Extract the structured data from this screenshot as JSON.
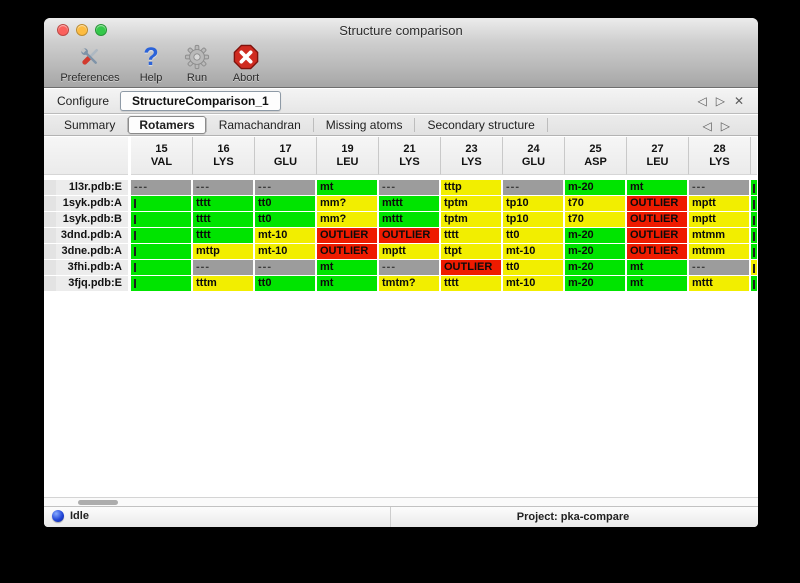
{
  "window": {
    "title": "Structure comparison"
  },
  "toolbar": {
    "items": [
      {
        "label": "Preferences",
        "icon": "tools-icon"
      },
      {
        "label": "Help",
        "icon": "question-icon"
      },
      {
        "label": "Run",
        "icon": "gear-icon"
      },
      {
        "label": "Abort",
        "icon": "abort-icon"
      }
    ]
  },
  "configure": {
    "label": "Configure",
    "tab_title": "StructureComparison_1"
  },
  "nav": {
    "prev": "◁",
    "next": "▷",
    "close": "✕"
  },
  "tabs": {
    "items": [
      "Summary",
      "Rotamers",
      "Ramachandran",
      "Missing atoms",
      "Secondary structure"
    ],
    "selected": "Rotamers"
  },
  "colors": {
    "green": "#00e400",
    "yellow": "#f2ee00",
    "red": "#ee1b00",
    "gray": "#9c9c9c"
  },
  "table": {
    "columns": [
      {
        "num": "15",
        "res": "VAL"
      },
      {
        "num": "16",
        "res": "LYS"
      },
      {
        "num": "17",
        "res": "GLU"
      },
      {
        "num": "19",
        "res": "LEU"
      },
      {
        "num": "21",
        "res": "LYS"
      },
      {
        "num": "23",
        "res": "LYS"
      },
      {
        "num": "24",
        "res": "GLU"
      },
      {
        "num": "25",
        "res": "ASP"
      },
      {
        "num": "27",
        "res": "LEU"
      },
      {
        "num": "28",
        "res": "LYS"
      }
    ],
    "rows": [
      {
        "label": "1l3r.pdb:E",
        "ov": "green",
        "cells": [
          {
            "t": "---",
            "c": "gray"
          },
          {
            "t": "---",
            "c": "gray"
          },
          {
            "t": "---",
            "c": "gray"
          },
          {
            "t": "mt",
            "c": "green"
          },
          {
            "t": "---",
            "c": "gray"
          },
          {
            "t": "tttp",
            "c": "yellow"
          },
          {
            "t": "---",
            "c": "gray"
          },
          {
            "t": "m-20",
            "c": "green"
          },
          {
            "t": "mt",
            "c": "green"
          },
          {
            "t": "---",
            "c": "gray"
          }
        ]
      },
      {
        "label": "1syk.pdb:A",
        "ov": "green",
        "cells": [
          {
            "t": "",
            "c": "green",
            "m": true
          },
          {
            "t": "tttt",
            "c": "green"
          },
          {
            "t": "tt0",
            "c": "green"
          },
          {
            "t": "mm?",
            "c": "yellow"
          },
          {
            "t": "mttt",
            "c": "green"
          },
          {
            "t": "tptm",
            "c": "yellow"
          },
          {
            "t": "tp10",
            "c": "yellow"
          },
          {
            "t": "t70",
            "c": "yellow"
          },
          {
            "t": "OUTLIER",
            "c": "red"
          },
          {
            "t": "mptt",
            "c": "yellow"
          }
        ]
      },
      {
        "label": "1syk.pdb:B",
        "ov": "green",
        "cells": [
          {
            "t": "",
            "c": "green",
            "m": true
          },
          {
            "t": "tttt",
            "c": "green"
          },
          {
            "t": "tt0",
            "c": "green"
          },
          {
            "t": "mm?",
            "c": "yellow"
          },
          {
            "t": "mttt",
            "c": "green"
          },
          {
            "t": "tptm",
            "c": "yellow"
          },
          {
            "t": "tp10",
            "c": "yellow"
          },
          {
            "t": "t70",
            "c": "yellow"
          },
          {
            "t": "OUTLIER",
            "c": "red"
          },
          {
            "t": "mptt",
            "c": "yellow"
          }
        ]
      },
      {
        "label": "3dnd.pdb:A",
        "ov": "green",
        "cells": [
          {
            "t": "",
            "c": "green",
            "m": true
          },
          {
            "t": "tttt",
            "c": "green"
          },
          {
            "t": "mt-10",
            "c": "yellow"
          },
          {
            "t": "OUTLIER",
            "c": "red"
          },
          {
            "t": "OUTLIER",
            "c": "red"
          },
          {
            "t": "tttt",
            "c": "yellow"
          },
          {
            "t": "tt0",
            "c": "yellow"
          },
          {
            "t": "m-20",
            "c": "green"
          },
          {
            "t": "OUTLIER",
            "c": "red"
          },
          {
            "t": "mtmm",
            "c": "yellow"
          }
        ]
      },
      {
        "label": "3dne.pdb:A",
        "ov": "green",
        "cells": [
          {
            "t": "",
            "c": "green",
            "m": true
          },
          {
            "t": "mttp",
            "c": "yellow"
          },
          {
            "t": "mt-10",
            "c": "yellow"
          },
          {
            "t": "OUTLIER",
            "c": "red"
          },
          {
            "t": "mptt",
            "c": "yellow"
          },
          {
            "t": "ttpt",
            "c": "yellow"
          },
          {
            "t": "mt-10",
            "c": "yellow"
          },
          {
            "t": "m-20",
            "c": "green"
          },
          {
            "t": "OUTLIER",
            "c": "red"
          },
          {
            "t": "mtmm",
            "c": "yellow"
          }
        ]
      },
      {
        "label": "3fhi.pdb:A",
        "ov": "yellow",
        "cells": [
          {
            "t": "",
            "c": "green",
            "m": true
          },
          {
            "t": "---",
            "c": "gray"
          },
          {
            "t": "---",
            "c": "gray"
          },
          {
            "t": "mt",
            "c": "green"
          },
          {
            "t": "---",
            "c": "gray"
          },
          {
            "t": "OUTLIER",
            "c": "red"
          },
          {
            "t": "tt0",
            "c": "yellow"
          },
          {
            "t": "m-20",
            "c": "green"
          },
          {
            "t": "mt",
            "c": "green"
          },
          {
            "t": "---",
            "c": "gray"
          }
        ]
      },
      {
        "label": "3fjq.pdb:E",
        "ov": "green",
        "cells": [
          {
            "t": "",
            "c": "green",
            "m": true
          },
          {
            "t": "tttm",
            "c": "yellow"
          },
          {
            "t": "tt0",
            "c": "green"
          },
          {
            "t": "mt",
            "c": "green"
          },
          {
            "t": "tmtm?",
            "c": "yellow"
          },
          {
            "t": "tttt",
            "c": "yellow"
          },
          {
            "t": "mt-10",
            "c": "yellow"
          },
          {
            "t": "m-20",
            "c": "green"
          },
          {
            "t": "mt",
            "c": "green"
          },
          {
            "t": "mttt",
            "c": "yellow"
          }
        ]
      }
    ]
  },
  "statusbar": {
    "status": "Idle",
    "project": "Project: pka-compare"
  }
}
